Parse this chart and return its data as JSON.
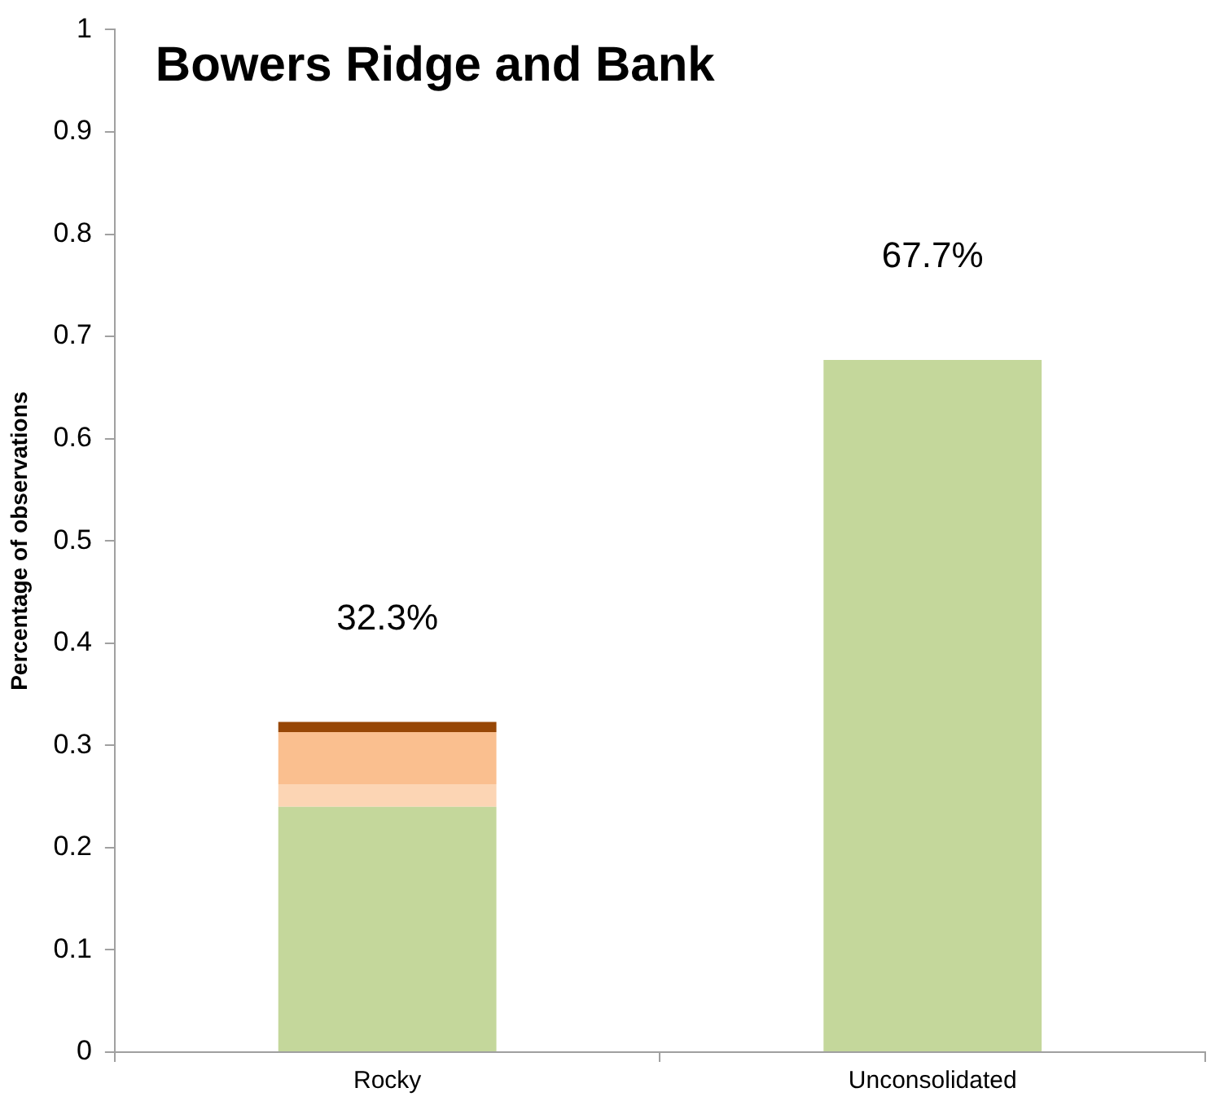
{
  "chart_data": {
    "type": "bar",
    "title": "Bowers Ridge and Bank",
    "ylabel": "Percentage of observations",
    "categories": [
      "Rocky",
      "Unconsolidated"
    ],
    "stacked": true,
    "series": [
      {
        "color": "#c4d79b",
        "values": [
          0.24,
          0.677
        ]
      },
      {
        "color": "#fcd5b4",
        "values": [
          0.022,
          0
        ]
      },
      {
        "color": "#fabf8f",
        "values": [
          0.051,
          0
        ]
      },
      {
        "color": "#974706",
        "values": [
          0.01,
          0
        ]
      }
    ],
    "totals": [
      "32.3%",
      "67.7%"
    ],
    "ylim": [
      0,
      1
    ],
    "yticks": [
      0,
      0.1,
      0.2,
      0.3,
      0.4,
      0.5,
      0.6,
      0.7,
      0.8,
      0.9,
      1
    ],
    "grid": false,
    "legend": false
  }
}
